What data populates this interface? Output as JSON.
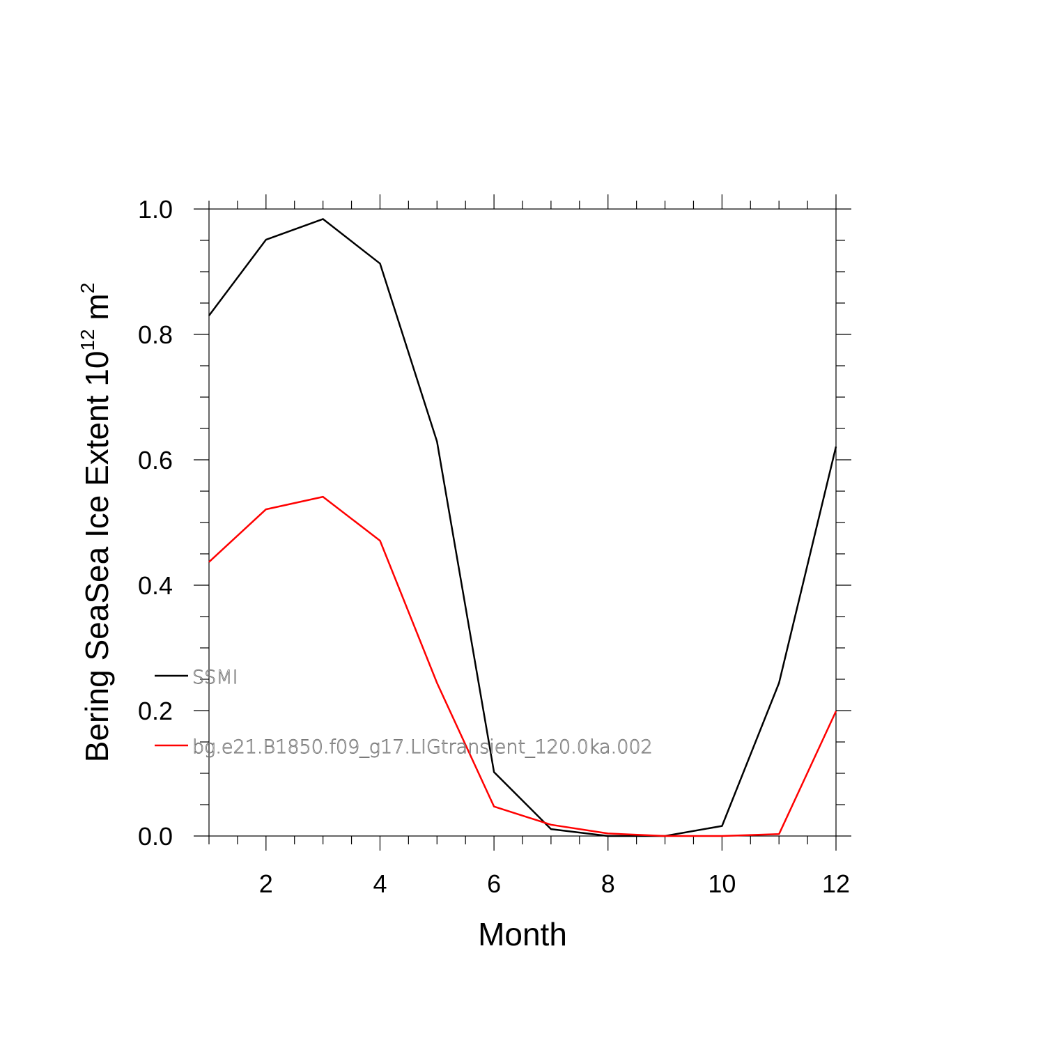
{
  "chart_data": {
    "type": "line",
    "title": "",
    "xlabel": "Month",
    "ylabel_main": "Bering SeaSea Ice Extent 10",
    "ylabel_exp1": "12",
    "ylabel_unit": " m",
    "ylabel_exp2": "2",
    "xlim": [
      1,
      12
    ],
    "ylim": [
      0,
      1
    ],
    "x_ticks": [
      2,
      4,
      6,
      8,
      10,
      12
    ],
    "x_tick_labels": [
      "2",
      "4",
      "6",
      "8",
      "10",
      "12"
    ],
    "y_ticks": [
      0,
      0.2,
      0.4,
      0.6,
      0.8,
      1.0
    ],
    "y_tick_labels": [
      "0.0",
      "0.2",
      "0.4",
      "0.6",
      "0.8",
      "1.0"
    ],
    "grid": false,
    "legend_position": "lower-left",
    "x": [
      1,
      2,
      3,
      4,
      5,
      6,
      7,
      8,
      9,
      10,
      11,
      12
    ],
    "series": [
      {
        "name": "SSMI",
        "color": "#000000",
        "values": [
          0.83,
          0.951,
          0.984,
          0.913,
          0.629,
          0.102,
          0.011,
          0.0,
          0.0,
          0.016,
          0.244,
          0.621
        ]
      },
      {
        "name": "bg.e21.B1850.f09_g17.LIGtransient_120.0ka.002",
        "color": "#ff0000",
        "values": [
          0.437,
          0.521,
          0.541,
          0.471,
          0.244,
          0.047,
          0.018,
          0.004,
          0.0,
          0.0,
          0.003,
          0.199
        ]
      }
    ]
  }
}
